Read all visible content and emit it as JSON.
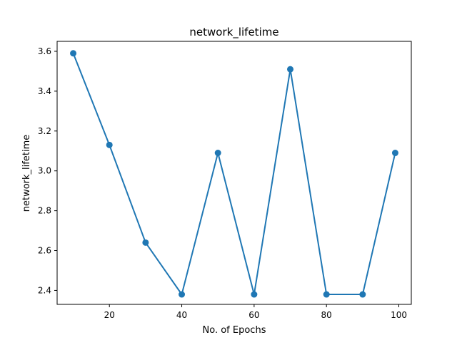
{
  "chart_data": {
    "type": "line",
    "title": "network_lifetime",
    "xlabel": "No. of Epochs",
    "ylabel": "network_lifetime",
    "x": [
      10,
      20,
      30,
      40,
      50,
      60,
      70,
      80,
      90,
      99
    ],
    "series": [
      {
        "values": [
          3.59,
          3.13,
          2.64,
          2.38,
          3.09,
          2.38,
          3.51,
          2.38,
          2.38,
          3.09
        ],
        "color": "#1f77b4",
        "marker": "circle"
      }
    ],
    "xlim": [
      5.55,
      103.45
    ],
    "ylim": [
      2.33,
      3.65
    ],
    "xticks": [
      20,
      40,
      60,
      80,
      100
    ],
    "xtick_labels": [
      "20",
      "40",
      "60",
      "80",
      "100"
    ],
    "yticks": [
      2.4,
      2.6,
      2.8,
      3.0,
      3.2,
      3.4,
      3.6
    ],
    "ytick_labels": [
      "2.4",
      "2.6",
      "2.8",
      "3.0",
      "3.2",
      "3.4",
      "3.6"
    ],
    "grid": false,
    "legend": false
  }
}
